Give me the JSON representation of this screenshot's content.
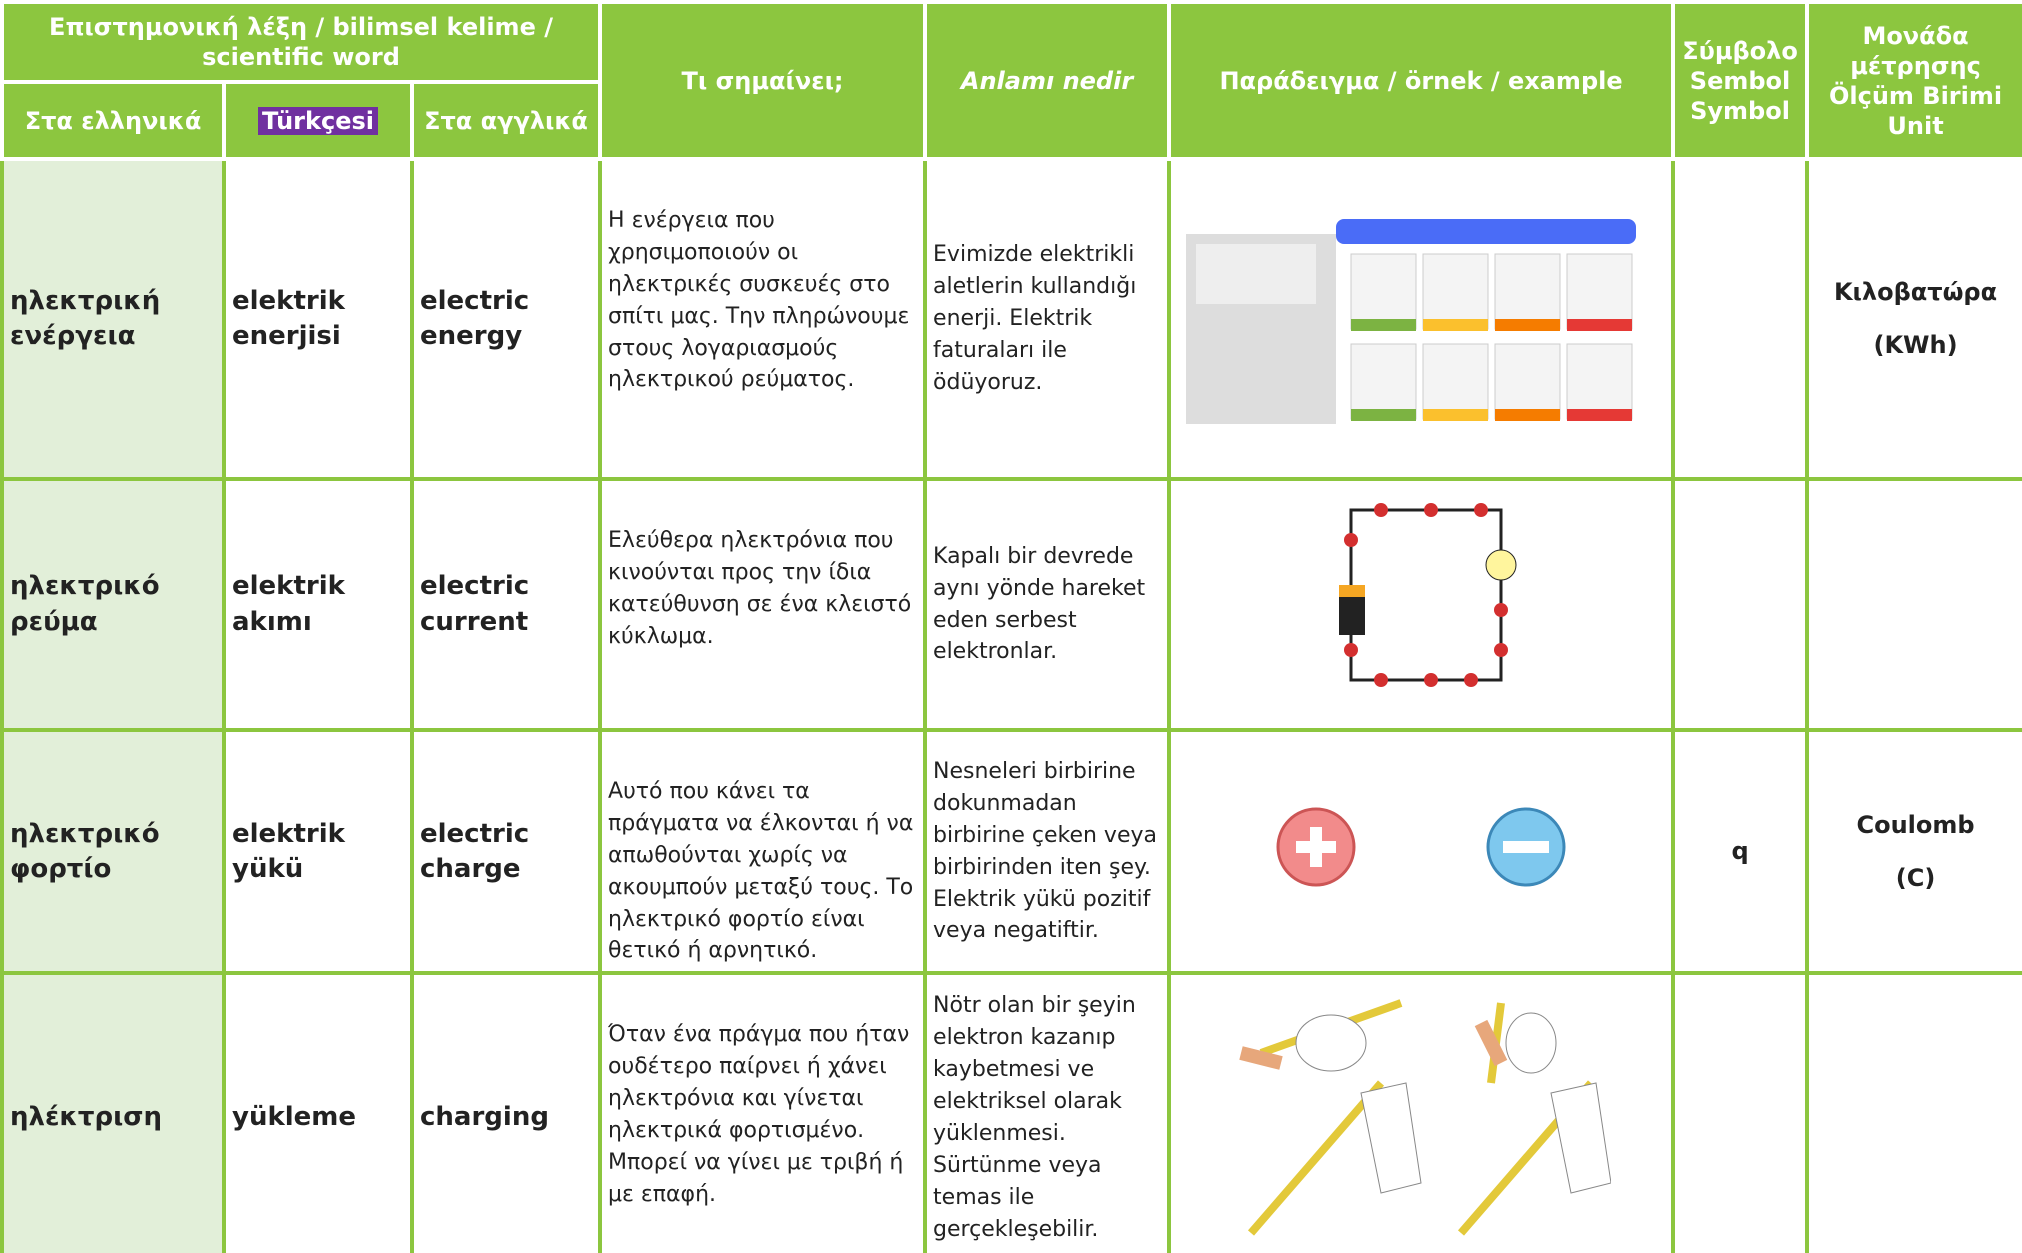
{
  "header": {
    "word_group": "Επιστημονική λέξη / bilimsel kelime / scientific word",
    "greek": "Στα ελληνικά",
    "turkish": "Türkçesi",
    "english": "Στα αγγλικά",
    "meaning_gr": "Τι σημαίνει;",
    "meaning_tr": "Anlamı nedir",
    "example": "Παράδειγμα / örnek / example",
    "symbol": [
      "Σύμβολο",
      "Sembol",
      "Symbol"
    ],
    "unit": [
      "Μονάδα",
      "μέτρησης",
      "Ölçüm Birimi",
      "Unit"
    ]
  },
  "rows": [
    {
      "greek": "ηλεκτρική ενέργεια",
      "turkish": "elektrik enerjisi",
      "english": "electric energy",
      "meaning_gr": "Η ενέργεια που χρησιμοποιούν οι ηλεκτρικές συσκευές στο σπίτι μας. Την πληρώνουμε στους λογαριασμούς ηλεκτρικού ρεύματος.",
      "meaning_tr": "Evimizde elektrikli aletlerin kullandığı enerji. Elektrik faturaları ile ödüyoruz.",
      "symbol": [],
      "unit": [
        "Κιλοβατώρα",
        "(KWh)"
      ]
    },
    {
      "greek": "ηλεκτρικό ρεύμα",
      "turkish": "elektrik akımı",
      "english": "electric current",
      "meaning_gr": "Ελεύθερα ηλεκτρόνια που κινούνται προς την ίδια κατεύθυνση σε ένα κλειστό κύκλωμα.",
      "meaning_tr": "Kapalı bir devrede aynı yönde hareket eden serbest elektronlar.",
      "symbol": [],
      "unit": []
    },
    {
      "greek": "ηλεκτρικό φορτίο",
      "turkish": "elektrik yükü",
      "english": "electric charge",
      "meaning_gr": "Αυτό που κάνει τα πράγματα να έλκονται ή να απωθούνται χωρίς να ακουμπούν μεταξύ τους. Το ηλεκτρικό φορτίο είναι θετικό ή αρνητικό.",
      "meaning_tr": "Nesneleri birbirine dokunmadan birbirine çeken veya birbirinden iten şey. Elektrik yükü pozitif veya negatiftir.",
      "symbol": [
        "q"
      ],
      "unit": [
        "Coulomb",
        "(C)"
      ]
    },
    {
      "greek": "ηλέκτριση",
      "turkish": "yükleme",
      "english": "charging",
      "meaning_gr": "Όταν ένα πράγμα που ήταν ουδέτερο παίρνει ή χάνει ηλεκτρόνια και γίνεται ηλεκτρικά φορτισμένο. Μπορεί να γίνει με τριβή ή με επαφή.",
      "meaning_tr": "Nötr olan bir şeyin elektron kazanıp kaybetmesi ve elektriksel olarak yüklenmesi. Sürtünme veya temas ile gerçekleşebilir.",
      "symbol": [],
      "unit": []
    }
  ]
}
